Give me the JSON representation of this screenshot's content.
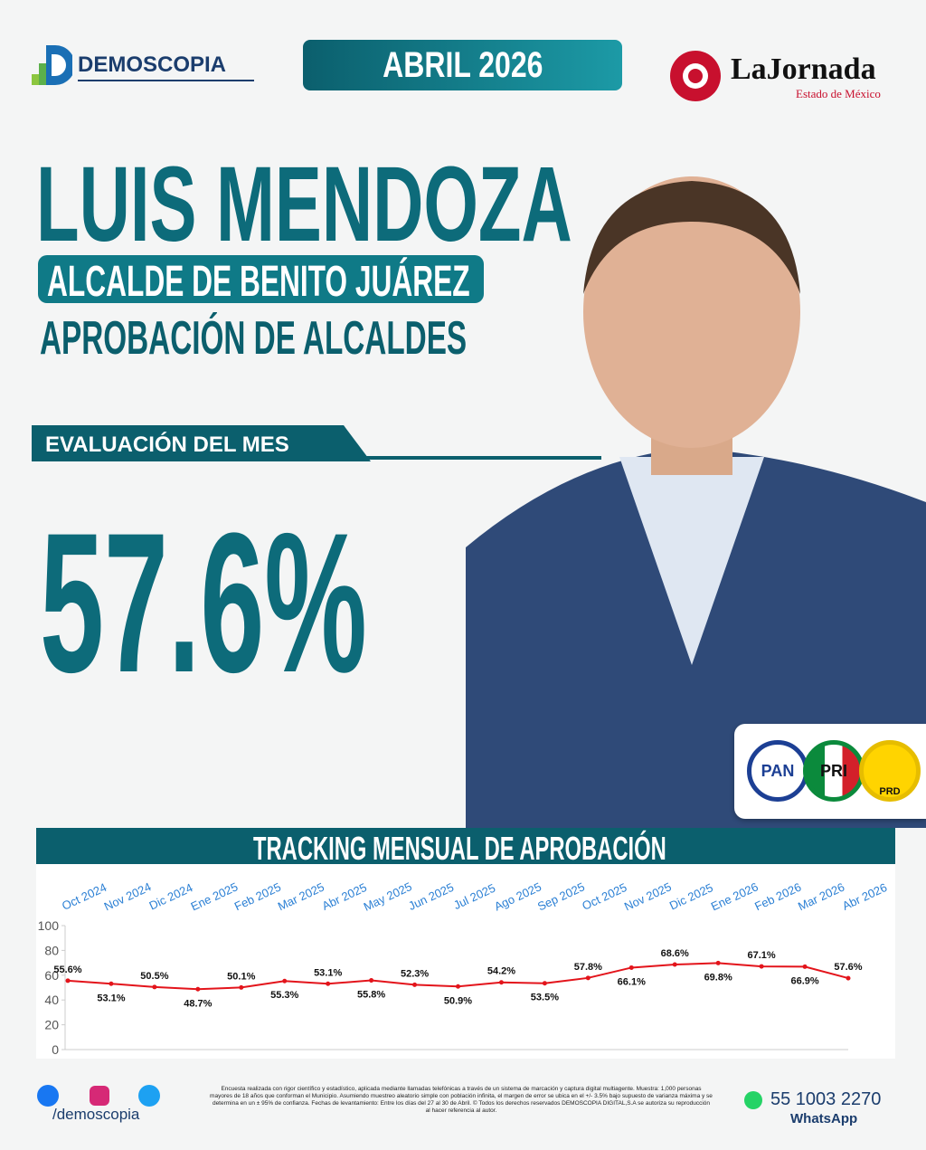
{
  "header": {
    "brand": "DEMOSCOPIA",
    "date": "ABRIL 2026",
    "partner": "LaJornada",
    "partner_sub": "Estado de México"
  },
  "profile": {
    "name": "LUIS MENDOZA",
    "role": "ALCALDE DE BENITO JUÁREZ",
    "subtitle": "APROBACIÓN DE ALCALDES",
    "evaluation_label": "EVALUACIÓN DEL MES",
    "evaluation": "57.6%",
    "parties": [
      "PAN",
      "PRI",
      "PRD"
    ]
  },
  "chart_data": {
    "type": "line",
    "title": "TRACKING MENSUAL DE APROBACIÓN",
    "categories": [
      "Oct 2024",
      "Nov 2024",
      "Dic 2024",
      "Ene 2025",
      "Feb 2025",
      "Mar 2025",
      "Abr 2025",
      "May 2025",
      "Jun 2025",
      "Jul 2025",
      "Ago 2025",
      "Sep 2025",
      "Oct 2025",
      "Nov 2025",
      "Dic 2025",
      "Ene 2026",
      "Feb 2026",
      "Mar 2026",
      "Abr 2026"
    ],
    "values": [
      55.6,
      53.1,
      50.5,
      48.7,
      50.1,
      55.3,
      53.1,
      55.8,
      52.3,
      50.9,
      54.2,
      53.5,
      57.8,
      66.1,
      68.6,
      69.8,
      67.1,
      66.9,
      57.6
    ],
    "value_labels": [
      "55.6%",
      "53.1%",
      "50.5%",
      "48.7%",
      "50.1%",
      "55.3%",
      "53.1%",
      "55.8%",
      "52.3%",
      "50.9%",
      "54.2%",
      "53.5%",
      "57.8%",
      "66.1%",
      "68.6%",
      "69.8%",
      "67.1%",
      "66.9%",
      "57.6%"
    ],
    "color": "#e3141b",
    "ylim": [
      0,
      100
    ],
    "yticks": [
      0,
      20,
      40,
      60,
      80,
      100
    ],
    "grid": false
  },
  "footer": {
    "handle": "/demoscopia",
    "disclaimer": "Encuesta realizada con rigor científico y estadístico, aplicada mediante llamadas telefónicas a través de un sistema de marcación y captura digital multiagente. Muestra: 1,000 personas mayores de 18 años que conforman el Municipio. Asumiendo muestreo aleatorio simple con población infinita, el margen de error se ubica en el +/- 3.5% bajo supuesto de varianza máxima y se determina en un ± 95% de confianza. Fechas de levantamiento: Entre los días del 27 al 30 de Abril. © Todos los derechos reservados DEMOSCOPIA DIGITAL,S.A se autoriza su reproducción al hacer referencia al autor.",
    "phone": "55 1003 2270",
    "phone_label": "WhatsApp"
  }
}
